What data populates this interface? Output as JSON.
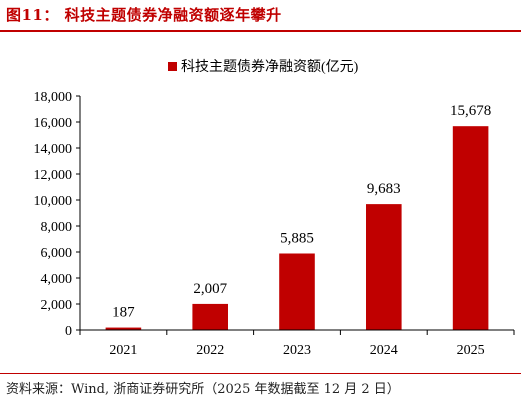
{
  "title": "图11：  科技主题债券净融资额逐年攀升",
  "source": "资料来源：Wind, 浙商证券研究所（2025 年数据截至 12 月 2 日）",
  "colors": {
    "accent": "#c00000",
    "bar": "#c00000",
    "axis": "#000000"
  },
  "chart_data": {
    "type": "bar",
    "categories": [
      "2021",
      "2022",
      "2023",
      "2024",
      "2025"
    ],
    "series": [
      {
        "name": "科技主题债券净融资额(亿元)",
        "values": [
          187,
          2007,
          5885,
          9683,
          15678
        ]
      }
    ],
    "data_labels": [
      "187",
      "2,007",
      "5,885",
      "9,683",
      "15,678"
    ],
    "yticks": [
      "0",
      "2,000",
      "4,000",
      "6,000",
      "8,000",
      "10,000",
      "12,000",
      "14,000",
      "16,000",
      "18,000"
    ],
    "ylim": [
      0,
      18000
    ],
    "legend_position": "top-center",
    "grid": false
  }
}
